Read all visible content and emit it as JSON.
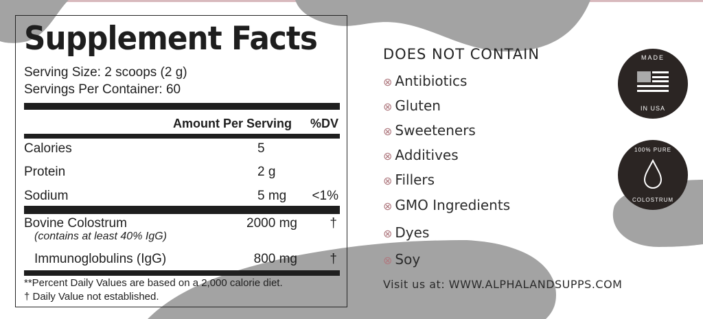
{
  "colors": {
    "blob": "#a3a3a3",
    "text": "#1e1e1e",
    "badge": "#2b2523",
    "cross": "#b07a80",
    "accent_top": "#d8b9bd"
  },
  "facts": {
    "title": "Supplement Facts",
    "serving_size": "Serving Size: 2 scoops  (2 g)",
    "servings_per_container": "Servings Per Container: 60",
    "header": {
      "amount": "Amount Per Serving",
      "dv": "%DV"
    },
    "rows": [
      {
        "name": "Calories",
        "amount": "5",
        "dv": ""
      },
      {
        "name": "Protein",
        "amount": "2 g",
        "dv": ""
      },
      {
        "name": "Sodium",
        "amount": "5 mg",
        "dv": "<1%"
      },
      {
        "name": "Bovine Colostrum",
        "note": "(contains at least 40% IgG)",
        "amount": "2000 mg",
        "dv": "†"
      },
      {
        "name": "Immunoglobulins (IgG)",
        "amount": "800 mg",
        "dv": "†"
      }
    ],
    "footnotes": [
      "**Percent Daily Values are based on a 2,000 calorie diet.",
      "† Daily Value not established."
    ]
  },
  "not_contain": {
    "heading": "DOES NOT CONTAIN",
    "icon": "circle-x-icon",
    "items": [
      "Antibiotics",
      "Gluten",
      "Sweeteners",
      "Additives",
      "Fillers",
      "GMO Ingredients",
      "Dyes",
      "Soy"
    ],
    "visit": "Visit us at: WWW.ALPHALANDSUPPS.COM"
  },
  "badges": [
    {
      "top": "MADE",
      "bottom": "IN USA",
      "icon": "us-flag-icon"
    },
    {
      "top": "100% PURE",
      "bottom": "COLOSTRUM",
      "icon": "droplet-icon"
    }
  ]
}
